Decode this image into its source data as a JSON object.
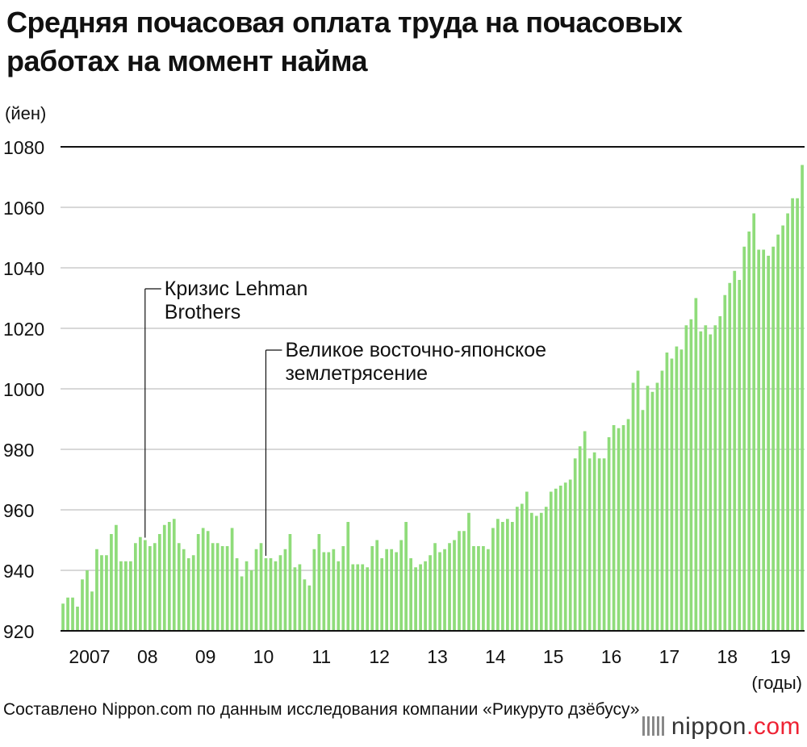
{
  "title": "Средняя почасовая оплата труда на почасовых работах на момент найма",
  "unit_label": "(йен)",
  "x_unit_label": "(годы)",
  "source": "Составлено Nippon.com по данным исследования компании «Рикуруто дзёбусу»",
  "logo": {
    "name": "nippon",
    "domain": ".com",
    "mark_icon": "nippon-logo-icon"
  },
  "colors": {
    "bar": "#8fdc7a",
    "axis": "#111111",
    "grid": "#cccccc",
    "annotation": "#111111"
  },
  "chart_data": {
    "type": "bar",
    "ylim": [
      920,
      1080
    ],
    "yticks": [
      920,
      940,
      960,
      980,
      1000,
      1020,
      1040,
      1060,
      1080
    ],
    "grid": true,
    "year_labels": [
      "2007",
      "08",
      "09",
      "10",
      "11",
      "12",
      "13",
      "14",
      "15",
      "16",
      "17",
      "18",
      "19"
    ],
    "annotations": [
      {
        "text": "Кризис Lehman Brothers",
        "month_index": 17
      },
      {
        "text": "Великое восточно-японское землетрясение",
        "month_index": 42
      }
    ],
    "values": [
      929,
      931,
      931,
      928,
      937,
      940,
      933,
      947,
      945,
      945,
      952,
      955,
      943,
      943,
      943,
      949,
      951,
      950,
      948,
      949,
      952,
      955,
      956,
      957,
      949,
      947,
      944,
      945,
      952,
      954,
      953,
      949,
      949,
      948,
      948,
      954,
      944,
      938,
      943,
      940,
      947,
      949,
      944,
      944,
      943,
      945,
      947,
      952,
      941,
      942,
      937,
      935,
      947,
      952,
      946,
      946,
      947,
      943,
      948,
      956,
      942,
      942,
      942,
      941,
      948,
      950,
      944,
      947,
      947,
      946,
      950,
      956,
      944,
      941,
      942,
      943,
      945,
      949,
      946,
      947,
      949,
      950,
      953,
      953,
      959,
      948,
      948,
      948,
      947,
      954,
      957,
      956,
      957,
      956,
      961,
      962,
      966,
      959,
      958,
      959,
      961,
      966,
      967,
      968,
      969,
      970,
      977,
      981,
      986,
      977,
      979,
      977,
      977,
      984,
      988,
      987,
      988,
      990,
      1002,
      1006,
      993,
      1001,
      999,
      1002,
      1006,
      1012,
      1010,
      1014,
      1013,
      1021,
      1023,
      1030,
      1019,
      1021,
      1018,
      1021,
      1024,
      1031,
      1035,
      1039,
      1036,
      1047,
      1052,
      1058,
      1046,
      1046,
      1044,
      1047,
      1051,
      1054,
      1058,
      1063,
      1063,
      1074
    ]
  }
}
